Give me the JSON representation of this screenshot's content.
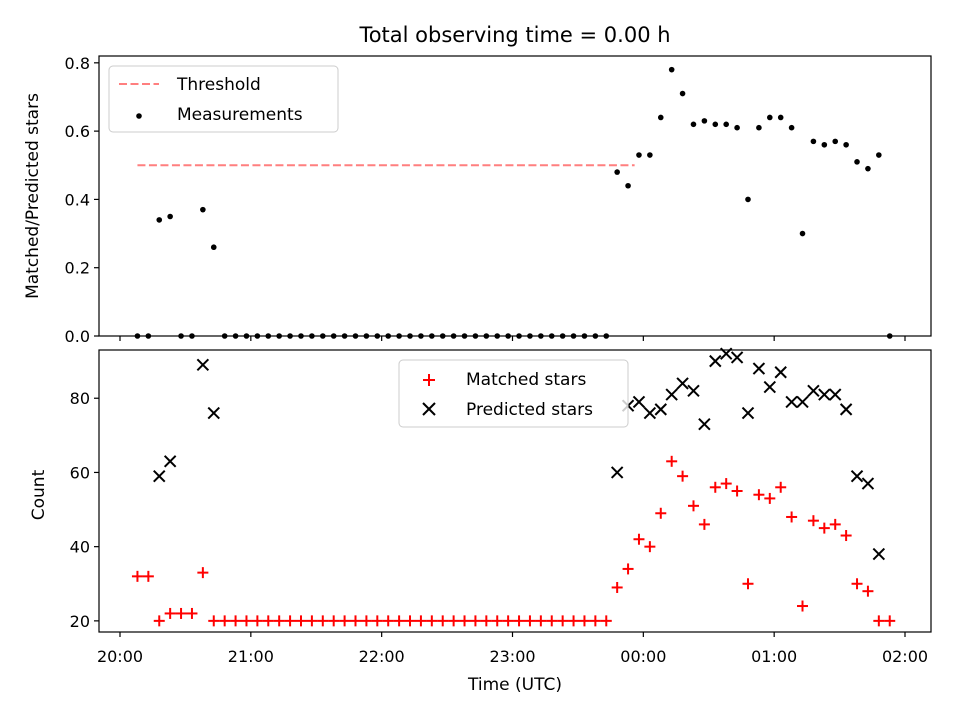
{
  "chart_data": [
    {
      "type": "scatter",
      "title": "Total observing time = 0.00 h",
      "xlabel": "",
      "ylabel": "Matched/Predicted stars",
      "xlim": [
        "20:00",
        "02:15"
      ],
      "ylim": [
        0,
        0.82
      ],
      "yticks": [
        0.0,
        0.2,
        0.4,
        0.6,
        0.8
      ],
      "ytick_labels": [
        "0.0",
        "0.2",
        "0.4",
        "0.6",
        "0.8"
      ],
      "legend_position": "top-left",
      "series": [
        {
          "name": "Threshold",
          "style": "dashed-line",
          "color": "#ff7f7f",
          "x": [
            "20:08",
            "23:56"
          ],
          "y": [
            0.5,
            0.5
          ]
        },
        {
          "name": "Measurements",
          "style": "dots",
          "color": "#000000",
          "x": [
            "20:08",
            "20:13",
            "20:18",
            "20:23",
            "20:28",
            "20:33",
            "20:38",
            "20:43",
            "20:48",
            "20:53",
            "20:58",
            "21:03",
            "21:08",
            "21:13",
            "21:18",
            "21:23",
            "21:28",
            "21:33",
            "21:38",
            "21:43",
            "21:48",
            "21:53",
            "21:58",
            "22:03",
            "22:08",
            "22:13",
            "22:18",
            "22:23",
            "22:28",
            "22:33",
            "22:38",
            "22:43",
            "22:48",
            "22:53",
            "22:58",
            "23:03",
            "23:08",
            "23:13",
            "23:18",
            "23:23",
            "23:28",
            "23:33",
            "23:38",
            "23:43",
            "23:48",
            "23:53",
            "23:58",
            "00:03",
            "00:08",
            "00:13",
            "00:18",
            "00:23",
            "00:28",
            "00:33",
            "00:38",
            "00:43",
            "00:48",
            "00:53",
            "00:58",
            "01:03",
            "01:08",
            "01:13",
            "01:18",
            "01:23",
            "01:28",
            "01:33",
            "01:38",
            "01:43",
            "01:48",
            "01:53"
          ],
          "y": [
            0,
            0,
            0.34,
            0.35,
            0,
            0,
            0.37,
            0.26,
            0,
            0,
            0,
            0,
            0,
            0,
            0,
            0,
            0,
            0,
            0,
            0,
            0,
            0,
            0,
            0,
            0,
            0,
            0,
            0,
            0,
            0,
            0,
            0,
            0,
            0,
            0,
            0,
            0,
            0,
            0,
            0,
            0,
            0,
            0,
            0,
            0.48,
            0.44,
            0.53,
            0.53,
            0.64,
            0.78,
            0.71,
            0.62,
            0.63,
            0.62,
            0.62,
            0.61,
            0.4,
            0.61,
            0.64,
            0.64,
            0.61,
            0.3,
            0.57,
            0.56,
            0.57,
            0.56,
            0.51,
            0.49,
            0.53,
            0
          ]
        }
      ]
    },
    {
      "type": "scatter",
      "title": "",
      "xlabel": "Time (UTC)",
      "ylabel": "Count",
      "xlim": [
        "20:00",
        "02:15"
      ],
      "ylim": [
        17,
        93
      ],
      "xticks": [
        "20:00",
        "21:00",
        "22:00",
        "23:00",
        "00:00",
        "01:00",
        "02:00"
      ],
      "yticks": [
        20,
        40,
        60,
        80
      ],
      "ytick_labels": [
        "20",
        "40",
        "60",
        "80"
      ],
      "legend_position": "top-center",
      "series": [
        {
          "name": "Matched stars",
          "marker": "plus",
          "color": "#ff0000",
          "x": [
            "20:08",
            "20:13",
            "20:18",
            "20:23",
            "20:28",
            "20:33",
            "20:38",
            "20:43",
            "20:48",
            "20:53",
            "20:58",
            "21:03",
            "21:08",
            "21:13",
            "21:18",
            "21:23",
            "21:28",
            "21:33",
            "21:38",
            "21:43",
            "21:48",
            "21:53",
            "21:58",
            "22:03",
            "22:08",
            "22:13",
            "22:18",
            "22:23",
            "22:28",
            "22:33",
            "22:38",
            "22:43",
            "22:48",
            "22:53",
            "22:58",
            "23:03",
            "23:08",
            "23:13",
            "23:18",
            "23:23",
            "23:28",
            "23:33",
            "23:38",
            "23:43",
            "23:48",
            "23:53",
            "23:58",
            "00:03",
            "00:08",
            "00:13",
            "00:18",
            "00:23",
            "00:28",
            "00:33",
            "00:38",
            "00:43",
            "00:48",
            "00:53",
            "00:58",
            "01:03",
            "01:08",
            "01:13",
            "01:18",
            "01:23",
            "01:28",
            "01:33",
            "01:38",
            "01:43",
            "01:48",
            "01:53"
          ],
          "y": [
            32,
            32,
            20,
            22,
            22,
            22,
            33,
            20,
            20,
            20,
            20,
            20,
            20,
            20,
            20,
            20,
            20,
            20,
            20,
            20,
            20,
            20,
            20,
            20,
            20,
            20,
            20,
            20,
            20,
            20,
            20,
            20,
            20,
            20,
            20,
            20,
            20,
            20,
            20,
            20,
            20,
            20,
            20,
            20,
            29,
            34,
            42,
            40,
            49,
            63,
            59,
            51,
            46,
            56,
            57,
            55,
            30,
            54,
            53,
            56,
            48,
            24,
            47,
            45,
            46,
            43,
            30,
            28,
            20,
            20
          ]
        },
        {
          "name": "Predicted stars",
          "marker": "x",
          "color": "#000000",
          "x": [
            "20:18",
            "20:23",
            "20:38",
            "20:43",
            "23:48",
            "23:53",
            "23:58",
            "00:03",
            "00:08",
            "00:13",
            "00:18",
            "00:23",
            "00:28",
            "00:33",
            "00:38",
            "00:43",
            "00:48",
            "00:53",
            "00:58",
            "01:03",
            "01:08",
            "01:13",
            "01:18",
            "01:23",
            "01:28",
            "01:33",
            "01:38",
            "01:43",
            "01:48"
          ],
          "y": [
            59,
            63,
            89,
            76,
            60,
            78,
            79,
            76,
            77,
            81,
            84,
            82,
            73,
            90,
            92,
            91,
            76,
            88,
            83,
            87,
            79,
            79,
            82,
            81,
            81,
            77,
            59,
            57,
            38
          ]
        }
      ]
    }
  ]
}
